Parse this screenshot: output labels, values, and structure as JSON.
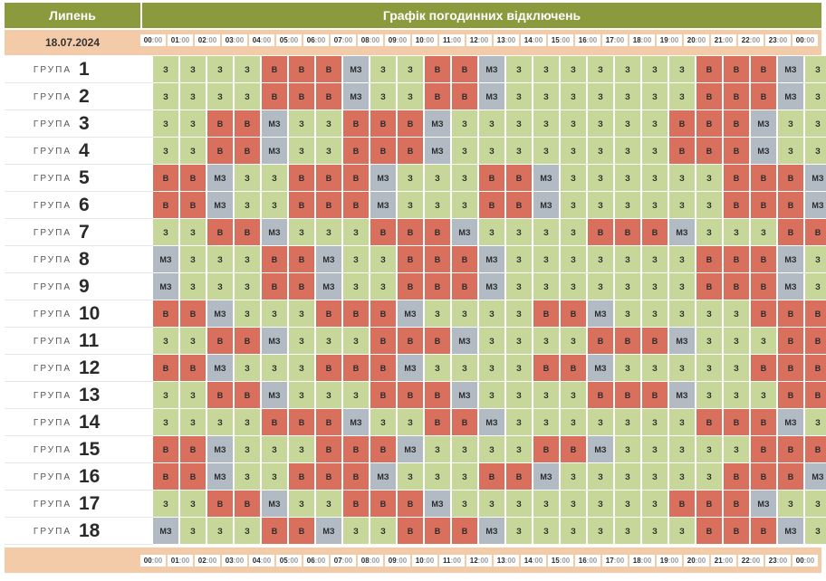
{
  "header": {
    "month": "Липень",
    "title": "Графік погодинних відключень",
    "date": "18.07.2024"
  },
  "hours": [
    "00",
    "01",
    "02",
    "03",
    "04",
    "05",
    "06",
    "07",
    "08",
    "09",
    "10",
    "11",
    "12",
    "13",
    "14",
    "15",
    "16",
    "17",
    "18",
    "19",
    "20",
    "21",
    "22",
    "23",
    "00"
  ],
  "minutes": ":00",
  "group_word": "ГРУПА",
  "legend": {
    "z": {
      "code": "З",
      "color": "#c7d79a"
    },
    "v": {
      "code": "В",
      "color": "#d8705d"
    },
    "mz": {
      "code": "МЗ",
      "color": "#b2bac4"
    }
  },
  "groups": [
    {
      "number": "1",
      "slots": [
        "З",
        "З",
        "З",
        "З",
        "В",
        "В",
        "В",
        "МЗ",
        "З",
        "З",
        "В",
        "В",
        "МЗ",
        "З",
        "З",
        "З",
        "З",
        "З",
        "З",
        "З",
        "В",
        "В",
        "В",
        "МЗ",
        "З"
      ]
    },
    {
      "number": "2",
      "slots": [
        "З",
        "З",
        "З",
        "З",
        "В",
        "В",
        "В",
        "МЗ",
        "З",
        "З",
        "В",
        "В",
        "МЗ",
        "З",
        "З",
        "З",
        "З",
        "З",
        "З",
        "З",
        "В",
        "В",
        "В",
        "МЗ",
        "З"
      ]
    },
    {
      "number": "3",
      "slots": [
        "З",
        "З",
        "В",
        "В",
        "МЗ",
        "З",
        "З",
        "В",
        "В",
        "В",
        "МЗ",
        "З",
        "З",
        "З",
        "З",
        "З",
        "З",
        "З",
        "З",
        "В",
        "В",
        "В",
        "МЗ",
        "З",
        "З"
      ]
    },
    {
      "number": "4",
      "slots": [
        "З",
        "З",
        "В",
        "В",
        "МЗ",
        "З",
        "З",
        "В",
        "В",
        "В",
        "МЗ",
        "З",
        "З",
        "З",
        "З",
        "З",
        "З",
        "З",
        "З",
        "В",
        "В",
        "В",
        "МЗ",
        "З",
        "З"
      ]
    },
    {
      "number": "5",
      "slots": [
        "В",
        "В",
        "МЗ",
        "З",
        "З",
        "В",
        "В",
        "В",
        "МЗ",
        "З",
        "З",
        "З",
        "В",
        "В",
        "МЗ",
        "З",
        "З",
        "З",
        "З",
        "З",
        "З",
        "В",
        "В",
        "В",
        "МЗ"
      ]
    },
    {
      "number": "6",
      "slots": [
        "В",
        "В",
        "МЗ",
        "З",
        "З",
        "В",
        "В",
        "В",
        "МЗ",
        "З",
        "З",
        "З",
        "В",
        "В",
        "МЗ",
        "З",
        "З",
        "З",
        "З",
        "З",
        "З",
        "В",
        "В",
        "В",
        "МЗ"
      ]
    },
    {
      "number": "7",
      "slots": [
        "З",
        "З",
        "В",
        "В",
        "МЗ",
        "З",
        "З",
        "З",
        "В",
        "В",
        "В",
        "МЗ",
        "З",
        "З",
        "З",
        "З",
        "В",
        "В",
        "В",
        "МЗ",
        "З",
        "З",
        "З",
        "В",
        "В"
      ]
    },
    {
      "number": "8",
      "slots": [
        "МЗ",
        "З",
        "З",
        "З",
        "В",
        "В",
        "МЗ",
        "З",
        "З",
        "В",
        "В",
        "В",
        "МЗ",
        "З",
        "З",
        "З",
        "З",
        "З",
        "З",
        "З",
        "В",
        "В",
        "В",
        "МЗ",
        "З"
      ]
    },
    {
      "number": "9",
      "slots": [
        "МЗ",
        "З",
        "З",
        "З",
        "В",
        "В",
        "МЗ",
        "З",
        "З",
        "В",
        "В",
        "В",
        "МЗ",
        "З",
        "З",
        "З",
        "З",
        "З",
        "З",
        "З",
        "В",
        "В",
        "В",
        "МЗ",
        "З"
      ]
    },
    {
      "number": "10",
      "slots": [
        "В",
        "В",
        "МЗ",
        "З",
        "З",
        "З",
        "В",
        "В",
        "В",
        "МЗ",
        "З",
        "З",
        "З",
        "З",
        "В",
        "В",
        "МЗ",
        "З",
        "З",
        "З",
        "З",
        "З",
        "В",
        "В",
        "В"
      ]
    },
    {
      "number": "11",
      "slots": [
        "З",
        "З",
        "В",
        "В",
        "МЗ",
        "З",
        "З",
        "З",
        "В",
        "В",
        "В",
        "МЗ",
        "З",
        "З",
        "З",
        "З",
        "В",
        "В",
        "В",
        "МЗ",
        "З",
        "З",
        "З",
        "В",
        "В"
      ]
    },
    {
      "number": "12",
      "slots": [
        "В",
        "В",
        "МЗ",
        "З",
        "З",
        "З",
        "В",
        "В",
        "В",
        "МЗ",
        "З",
        "З",
        "З",
        "З",
        "В",
        "В",
        "МЗ",
        "З",
        "З",
        "З",
        "З",
        "З",
        "В",
        "В",
        "В"
      ]
    },
    {
      "number": "13",
      "slots": [
        "З",
        "З",
        "В",
        "В",
        "МЗ",
        "З",
        "З",
        "З",
        "В",
        "В",
        "В",
        "МЗ",
        "З",
        "З",
        "З",
        "З",
        "В",
        "В",
        "В",
        "МЗ",
        "З",
        "З",
        "З",
        "В",
        "В"
      ]
    },
    {
      "number": "14",
      "slots": [
        "З",
        "З",
        "З",
        "З",
        "В",
        "В",
        "В",
        "МЗ",
        "З",
        "З",
        "В",
        "В",
        "МЗ",
        "З",
        "З",
        "З",
        "З",
        "З",
        "З",
        "З",
        "В",
        "В",
        "В",
        "МЗ",
        "З"
      ]
    },
    {
      "number": "15",
      "slots": [
        "В",
        "В",
        "МЗ",
        "З",
        "З",
        "З",
        "В",
        "В",
        "В",
        "МЗ",
        "З",
        "З",
        "З",
        "З",
        "В",
        "В",
        "МЗ",
        "З",
        "З",
        "З",
        "З",
        "З",
        "В",
        "В",
        "В"
      ]
    },
    {
      "number": "16",
      "slots": [
        "В",
        "В",
        "МЗ",
        "З",
        "З",
        "В",
        "В",
        "В",
        "МЗ",
        "З",
        "З",
        "З",
        "В",
        "В",
        "МЗ",
        "З",
        "З",
        "З",
        "З",
        "З",
        "З",
        "В",
        "В",
        "В",
        "МЗ"
      ]
    },
    {
      "number": "17",
      "slots": [
        "З",
        "З",
        "В",
        "В",
        "МЗ",
        "З",
        "З",
        "В",
        "В",
        "В",
        "МЗ",
        "З",
        "З",
        "З",
        "З",
        "З",
        "З",
        "З",
        "З",
        "В",
        "В",
        "В",
        "МЗ",
        "З",
        "З"
      ]
    },
    {
      "number": "18",
      "slots": [
        "МЗ",
        "З",
        "З",
        "З",
        "В",
        "В",
        "МЗ",
        "З",
        "З",
        "В",
        "В",
        "В",
        "МЗ",
        "З",
        "З",
        "З",
        "З",
        "З",
        "З",
        "З",
        "В",
        "В",
        "В",
        "МЗ",
        "З"
      ]
    }
  ]
}
